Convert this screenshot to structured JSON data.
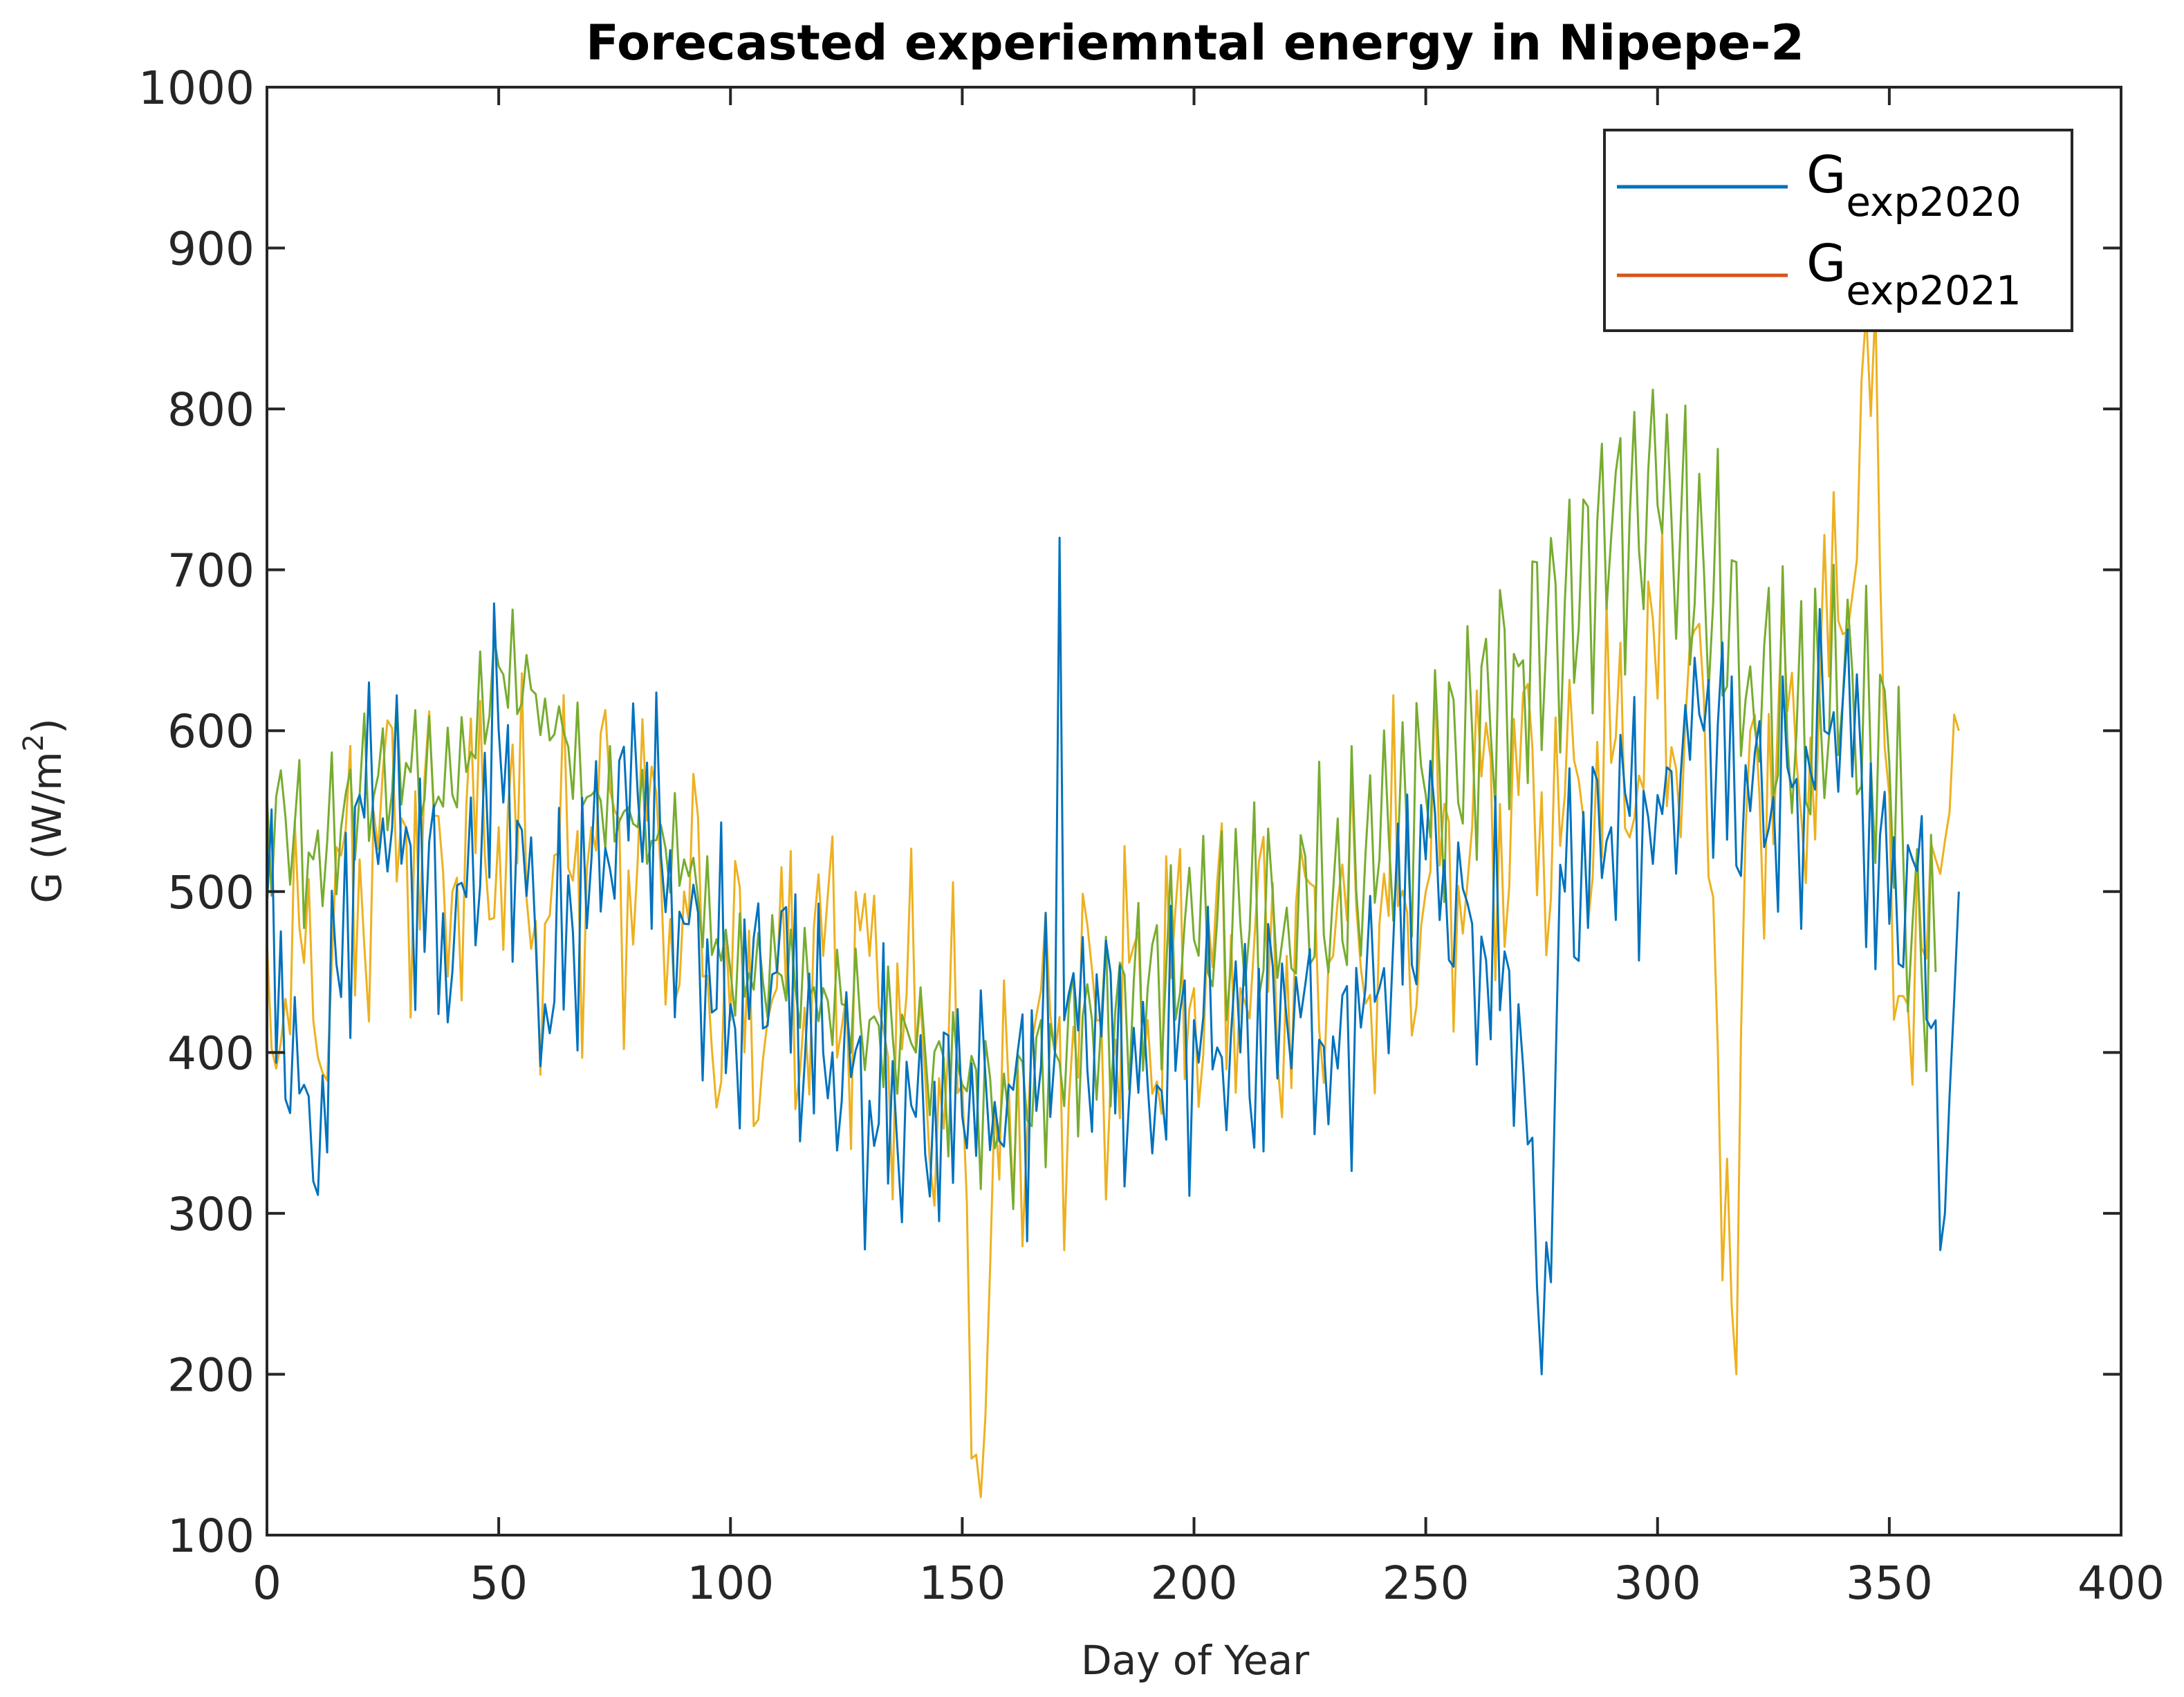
{
  "chart_data": {
    "type": "line",
    "title": "Forecasted experiemntal energy in Nipepe-2",
    "xlabel": "Day of Year",
    "ylabel": "G (W/m",
    "ylabel_sup": "2",
    "ylabel_close": ")",
    "xlim": [
      0,
      400
    ],
    "ylim": [
      100,
      1000
    ],
    "xticks": [
      0,
      50,
      100,
      150,
      200,
      250,
      300,
      350,
      400
    ],
    "yticks": [
      100,
      200,
      300,
      400,
      500,
      600,
      700,
      800,
      900,
      1000
    ],
    "xtick_labels": [
      "0",
      "50",
      "100",
      "150",
      "200",
      "250",
      "300",
      "350",
      "400"
    ],
    "ytick_labels": [
      "100",
      "200",
      "300",
      "400",
      "500",
      "600",
      "700",
      "800",
      "900",
      "1000"
    ],
    "grid": false,
    "legend_position": "top-right",
    "series": [
      {
        "name": "G exp2020",
        "legend_main": "G",
        "legend_sub": "exp2020",
        "color": "#0072BD",
        "x": [
          0,
          10,
          20,
          30,
          40,
          50,
          60,
          70,
          80,
          90,
          100,
          110,
          120,
          130,
          140,
          150,
          160,
          170,
          171,
          172,
          180,
          190,
          200,
          210,
          220,
          230,
          240,
          250,
          260,
          270,
          275,
          280,
          290,
          300,
          310,
          320,
          330,
          340,
          350,
          355,
          360,
          362,
          365
        ],
        "values": [
          490,
          320,
          560,
          540,
          450,
          600,
          430,
          520,
          560,
          480,
          430,
          450,
          400,
          370,
          360,
          360,
          380,
          400,
          720,
          420,
          410,
          380,
          420,
          400,
          420,
          410,
          440,
          520,
          480,
          430,
          200,
          500,
          540,
          560,
          600,
          550,
          570,
          620,
          480,
          520,
          420,
          300,
          500
        ]
      },
      {
        "name": "G exp2021",
        "legend_main": "G",
        "legend_sub": "exp2021",
        "color": "#D95319",
        "x": [],
        "values": []
      },
      {
        "name": "unlabeled green",
        "color": "#77AC30",
        "x": [
          0,
          10,
          20,
          30,
          40,
          50,
          60,
          70,
          80,
          90,
          100,
          110,
          120,
          130,
          140,
          150,
          160,
          170,
          180,
          190,
          200,
          210,
          220,
          230,
          240,
          250,
          260,
          270,
          280,
          290,
          300,
          310,
          320,
          330,
          340,
          350,
          355,
          360
        ],
        "values": [
          560,
          520,
          560,
          580,
          560,
          640,
          620,
          560,
          540,
          520,
          450,
          450,
          440,
          420,
          400,
          380,
          360,
          400,
          420,
          440,
          470,
          480,
          490,
          500,
          520,
          560,
          600,
          640,
          680,
          720,
          740,
          700,
          640,
          600,
          620,
          580,
          480,
          450
        ]
      },
      {
        "name": "unlabeled yellow",
        "color": "#EDB120",
        "x": [
          0,
          10,
          20,
          30,
          40,
          50,
          60,
          70,
          80,
          90,
          100,
          110,
          120,
          130,
          140,
          150,
          153,
          160,
          170,
          180,
          190,
          200,
          210,
          220,
          230,
          240,
          250,
          260,
          270,
          280,
          290,
          300,
          310,
          317,
          320,
          330,
          340,
          345,
          350,
          355,
          360,
          364,
          365
        ],
        "values": [
          470,
          420,
          520,
          540,
          500,
          540,
          480,
          540,
          520,
          500,
          420,
          440,
          460,
          460,
          400,
          380,
          150,
          380,
          400,
          420,
          420,
          440,
          440,
          460,
          460,
          480,
          500,
          540,
          560,
          560,
          580,
          620,
          620,
          200,
          600,
          580,
          660,
          860,
          560,
          380,
          520,
          610,
          600
        ]
      }
    ]
  }
}
